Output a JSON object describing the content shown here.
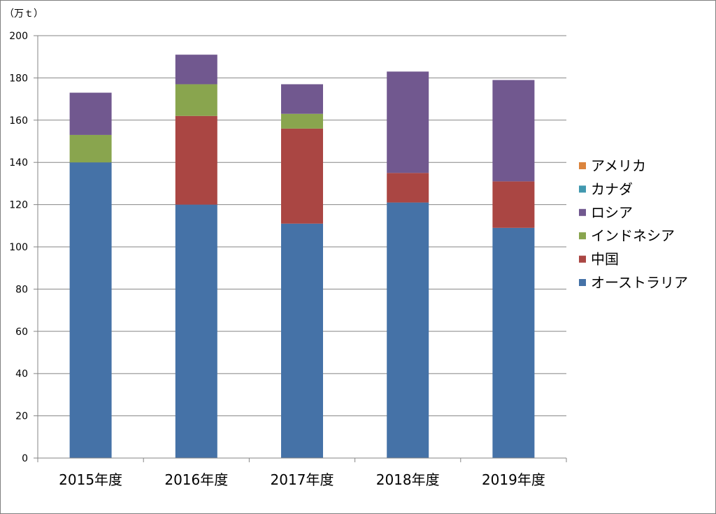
{
  "chart_data": {
    "type": "bar",
    "stacked": true,
    "unit_label": "（万ｔ）",
    "categories": [
      "2015年度",
      "2016年度",
      "2017年度",
      "2018年度",
      "2019年度"
    ],
    "series": [
      {
        "name": "オーストラリア",
        "color": "#4572a7",
        "values": [
          140,
          120,
          111,
          121,
          109
        ]
      },
      {
        "name": "中国",
        "color": "#aa4643",
        "values": [
          0,
          42,
          45,
          14,
          22
        ]
      },
      {
        "name": "インドネシア",
        "color": "#89a54e",
        "values": [
          13,
          15,
          7,
          0,
          0
        ]
      },
      {
        "name": "ロシア",
        "color": "#71588f",
        "values": [
          20,
          14,
          14,
          48,
          48
        ]
      },
      {
        "name": "カナダ",
        "color": "#4198af",
        "values": [
          0,
          0,
          0,
          0,
          0
        ]
      },
      {
        "name": "アメリカ",
        "color": "#db843d",
        "values": [
          0,
          0,
          0,
          0,
          0
        ]
      }
    ],
    "ylim": [
      0,
      200
    ],
    "yticks": [
      0,
      20,
      40,
      60,
      80,
      100,
      120,
      140,
      160,
      180,
      200
    ],
    "grid": true,
    "legend_position": "right",
    "legend_order": [
      "アメリカ",
      "カナダ",
      "ロシア",
      "インドネシア",
      "中国",
      "オーストラリア"
    ]
  }
}
